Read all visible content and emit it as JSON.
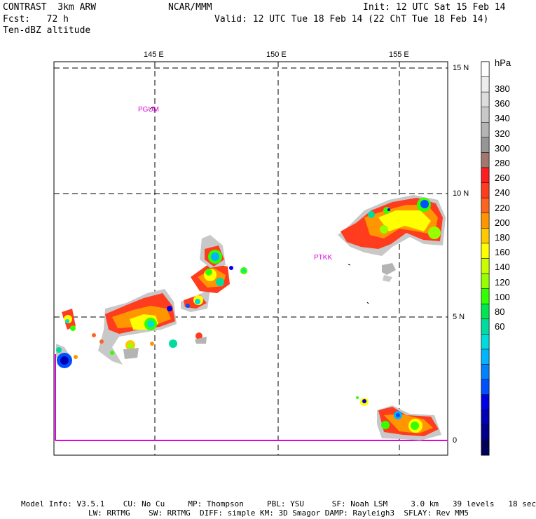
{
  "header": {
    "model": "CONTRAST  3km ARW",
    "org": "NCAR/MMM",
    "init": "Init: 12 UTC Sat 15 Feb 14",
    "fcst": "Fcst:   72 h",
    "valid": "Valid: 12 UTC Tue 18 Feb 14 (22 ChT Tue 18 Feb 14)",
    "field": "Ten-dBZ altitude"
  },
  "map": {
    "lon_labels": [
      "145 E",
      "150 E",
      "155 E"
    ],
    "lat_labels": [
      "15 N",
      "10 N",
      "5 N",
      "0"
    ],
    "stations": [
      "PGUM",
      "PTKK"
    ]
  },
  "colorbar": {
    "unit": "hPa",
    "labels": [
      "380",
      "360",
      "340",
      "320",
      "300",
      "280",
      "260",
      "240",
      "220",
      "200",
      "180",
      "160",
      "140",
      "120",
      "100",
      "80",
      "60"
    ],
    "colors": [
      "#ffffff",
      "#ededed",
      "#dcdcdc",
      "#c8c8c8",
      "#b4b4b4",
      "#969696",
      "#a0786e",
      "#ff1e1e",
      "#ff3c1e",
      "#ff641e",
      "#ff9600",
      "#ffc800",
      "#ffff00",
      "#c8ff00",
      "#96ff00",
      "#32ff00",
      "#00e650",
      "#00dca0",
      "#00dcdc",
      "#00b4ff",
      "#0082ff",
      "#0050ff",
      "#0000e6",
      "#0000b4",
      "#00008c",
      "#00005a"
    ]
  },
  "footer": {
    "line1": "Model Info: V3.5.1    CU: No Cu     MP: Thompson     PBL: YSU      SF: Noah LSM     3.0 km   39 levels   18 sec",
    "line2": "LW: RRTMG    SW: RRTMG  DIFF: simple KM: 3D Smagor DAMP: Rayleigh3  SFLAY: Rev MM5"
  }
}
